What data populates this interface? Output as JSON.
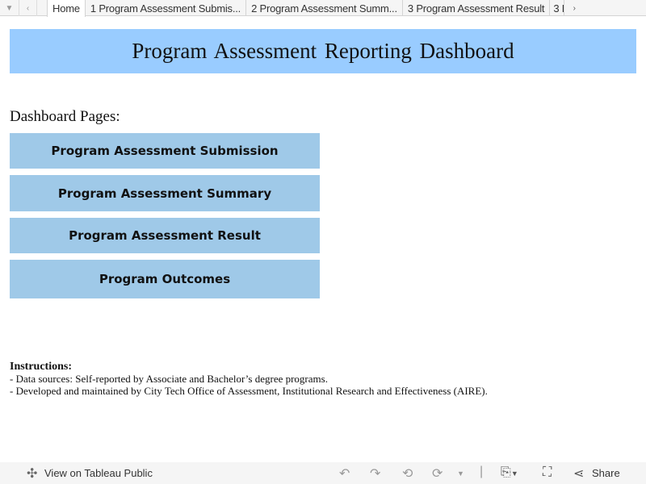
{
  "tabs": {
    "items": [
      "Home",
      "1 Program Assessment Submis...",
      "2 Program Assessment Summ...",
      "3 Program Assessment Result",
      "3 P"
    ],
    "active": 0
  },
  "banner": {
    "title": "Program Assessment Reporting Dashboard",
    "color": "#99ccff"
  },
  "section_label": "Dashboard Pages:",
  "nav_buttons": [
    "Program Assessment Submission",
    "Program Assessment Summary",
    "Program Assessment Result",
    "Program Outcomes"
  ],
  "nav_button_color": "#9fc9e8",
  "instructions": {
    "heading": "Instructions:",
    "lines": [
      "- Data sources: Self-reported by Associate and Bachelor’s degree programs.",
      "- Developed and maintained by City Tech Office of Assessment, Institutional Research and Effectiveness (AIRE)."
    ]
  },
  "footer": {
    "view_label": "View on Tableau Public",
    "share_label": "Share"
  },
  "icons": [
    "tab-menu-icon",
    "tab-prev-icon",
    "tab-next-icon",
    "tableau-logo-icon",
    "undo-icon",
    "redo-icon",
    "revert-icon",
    "refresh-icon",
    "download-icon",
    "fullscreen-icon",
    "share-icon"
  ]
}
